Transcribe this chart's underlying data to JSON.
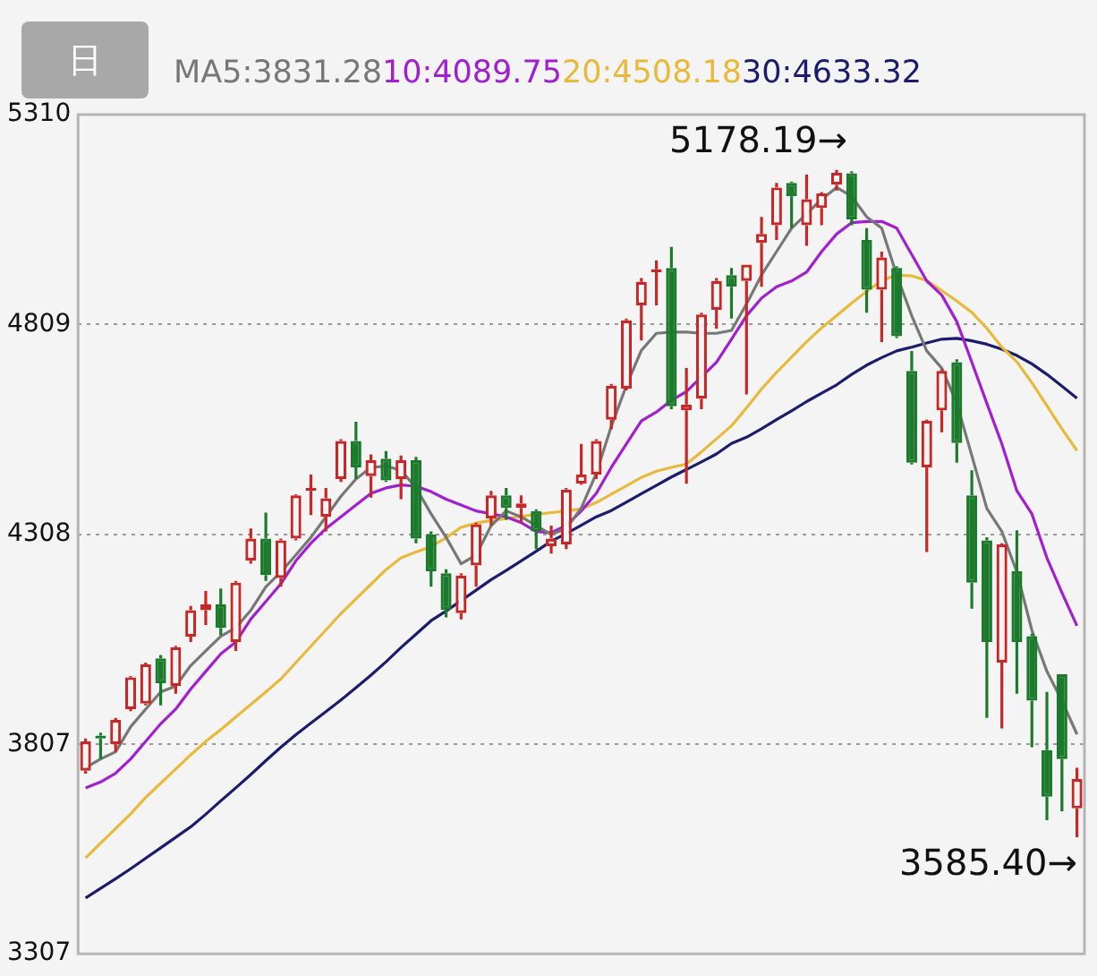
{
  "chart_data": {
    "type": "candlestick",
    "categories": [
      null,
      null,
      null,
      null,
      null,
      null,
      null,
      null,
      null,
      null,
      null,
      null,
      null,
      null,
      null,
      null,
      null,
      null,
      null,
      null,
      null,
      null,
      null,
      null,
      null,
      null,
      null,
      null,
      null,
      null,
      null,
      null,
      null,
      null,
      null,
      null,
      null,
      null,
      null,
      null,
      null,
      null,
      null,
      null,
      null,
      null,
      null,
      null,
      null,
      null,
      null,
      null,
      null,
      null,
      null,
      null,
      null,
      null,
      null,
      null,
      null,
      null,
      null,
      null,
      null,
      null,
      null
    ],
    "ohlc": [
      [
        3744,
        3821,
        3737,
        3814
      ],
      [
        3828,
        3835,
        3772,
        3821
      ],
      [
        3807,
        3870,
        3789,
        3865
      ],
      [
        3891,
        3970,
        3886,
        3967
      ],
      [
        3904,
        4002,
        3900,
        3998
      ],
      [
        4012,
        4020,
        3900,
        3953
      ],
      [
        3946,
        4042,
        3928,
        4039
      ],
      [
        4064,
        4137,
        4051,
        4127
      ],
      [
        4127,
        4173,
        4092,
        4141
      ],
      [
        4141,
        4179,
        4067,
        4085
      ],
      [
        4051,
        4197,
        4030,
        4193
      ],
      [
        4245,
        4322,
        4238,
        4298
      ],
      [
        4298,
        4360,
        4197,
        4211
      ],
      [
        4204,
        4298,
        4183,
        4294
      ],
      [
        4298,
        4404,
        4294,
        4401
      ],
      [
        4412,
        4451,
        4354,
        4419
      ],
      [
        4350,
        4419,
        4315,
        4394
      ],
      [
        4440,
        4535,
        4433,
        4531
      ],
      [
        4531,
        4577,
        4440,
        4468
      ],
      [
        4447,
        4499,
        4396,
        4485
      ],
      [
        4489,
        4507,
        4433,
        4437
      ],
      [
        4440,
        4496,
        4392,
        4485
      ],
      [
        4485,
        4493,
        4287,
        4298
      ],
      [
        4308,
        4315,
        4183,
        4220
      ],
      [
        4215,
        4225,
        4110,
        4128
      ],
      [
        4120,
        4215,
        4105,
        4210
      ],
      [
        4234,
        4336,
        4183,
        4332
      ],
      [
        4346,
        4412,
        4329,
        4401
      ],
      [
        4401,
        4419,
        4343,
        4371
      ],
      [
        4371,
        4401,
        4336,
        4382
      ],
      [
        4364,
        4368,
        4273,
        4315
      ],
      [
        4280,
        4329,
        4262,
        4298
      ],
      [
        4284,
        4419,
        4273,
        4415
      ],
      [
        4429,
        4524,
        4426,
        4451
      ],
      [
        4451,
        4535,
        4440,
        4531
      ],
      [
        4582,
        4667,
        4559,
        4663
      ],
      [
        4656,
        4823,
        4652,
        4819
      ],
      [
        4855,
        4920,
        4771,
        4911
      ],
      [
        4934,
        4962,
        4855,
        4941
      ],
      [
        4944,
        4994,
        4607,
        4614
      ],
      [
        4604,
        4705,
        4429,
        4618
      ],
      [
        4632,
        4837,
        4607,
        4833
      ],
      [
        4844,
        4920,
        4799,
        4913
      ],
      [
        4927,
        4944,
        4823,
        4899
      ],
      [
        4913,
        4952,
        4642,
        4952
      ],
      [
        5004,
        5066,
        4899,
        5025
      ],
      [
        5046,
        5147,
        5011,
        5136
      ],
      [
        5147,
        5150,
        5039,
        5115
      ],
      [
        5046,
        5167,
        4997,
        5108
      ],
      [
        5087,
        5125,
        5046,
        5122
      ],
      [
        5143,
        5178.19,
        5129,
        5171
      ],
      [
        5170,
        5175,
        5046,
        5060
      ],
      [
        5011,
        5039,
        4837,
        4892
      ],
      [
        4892,
        4983,
        4767,
        4969
      ],
      [
        4944,
        4948,
        4777,
        4781
      ],
      [
        4698,
        4746,
        4475,
        4479
      ],
      [
        4468,
        4582,
        4266,
        4579
      ],
      [
        4604,
        4702,
        4552,
        4698
      ],
      [
        4719,
        4726,
        4479,
        4526
      ],
      [
        4401,
        4461,
        4131,
        4193
      ],
      [
        4294,
        4301,
        3870,
        4051
      ],
      [
        4002,
        4287,
        3845,
        4284
      ],
      [
        4220,
        4318,
        3928,
        4051
      ],
      [
        4065,
        4071,
        3800,
        3911
      ],
      [
        3793,
        3932,
        3626,
        3682
      ],
      [
        3974,
        3974,
        3647,
        3772
      ],
      [
        3654,
        3751,
        3585.4,
        3724
      ]
    ],
    "colors": [
      "#c62828",
      "#1b7a2b",
      "#c62828",
      "#c62828",
      "#c62828",
      "#1b7a2b",
      "#c62828",
      "#c62828",
      "#c62828",
      "#1b7a2b",
      "#c62828",
      "#c62828",
      "#1b7a2b",
      "#c62828",
      "#c62828",
      "#c62828",
      "#c62828",
      "#c62828",
      "#1b7a2b",
      "#c62828",
      "#1b7a2b",
      "#c62828",
      "#1b7a2b",
      "#1b7a2b",
      "#1b7a2b",
      "#c62828",
      "#c62828",
      "#c62828",
      "#1b7a2b",
      "#c62828",
      "#1b7a2b",
      "#c62828",
      "#c62828",
      "#c62828",
      "#c62828",
      "#c62828",
      "#c62828",
      "#c62828",
      "#c62828",
      "#1b7a2b",
      "#c62828",
      "#c62828",
      "#c62828",
      "#1b7a2b",
      "#c62828",
      "#c62828",
      "#c62828",
      "#1b7a2b",
      "#c62828",
      "#c62828",
      "#c62828",
      "#1b7a2b",
      "#1b7a2b",
      "#c62828",
      "#1b7a2b",
      "#1b7a2b",
      "#c62828",
      "#c62828",
      "#1b7a2b",
      "#1b7a2b",
      "#1b7a2b",
      "#c62828",
      "#1b7a2b",
      "#1b7a2b",
      "#1b7a2b",
      "#1b7a2b",
      "#c62828"
    ],
    "series": [
      {
        "type": "line",
        "name": "MA5:3831.28",
        "color": "#777777",
        "values": [
          3751,
          3772,
          3789,
          3849,
          3891,
          3932,
          3946,
          3995,
          4030,
          4065,
          4085,
          4127,
          4183,
          4218,
          4259,
          4301,
          4350,
          4399,
          4440,
          4468,
          4471,
          4461,
          4419,
          4357,
          4301,
          4238,
          4259,
          4329,
          4364,
          4350,
          4329,
          4308,
          4322,
          4371,
          4454,
          4566,
          4663,
          4747,
          4788,
          4791,
          4791,
          4788,
          4788,
          4795,
          4858,
          4927,
          4983,
          5039,
          5073,
          5108,
          5136,
          5115,
          5066,
          5039,
          4927,
          4830,
          4746,
          4705,
          4621,
          4496,
          4370,
          4315,
          4218,
          4079,
          3981,
          3911,
          3831
        ]
      },
      {
        "type": "line",
        "name": "10:4089.75",
        "color": "#a21fd0",
        "values": [
          3703,
          3717,
          3738,
          3772,
          3814,
          3856,
          3891,
          3939,
          3981,
          4023,
          4051,
          4106,
          4148,
          4190,
          4245,
          4287,
          4322,
          4350,
          4378,
          4406,
          4419,
          4426,
          4423,
          4410,
          4392,
          4378,
          4364,
          4357,
          4350,
          4336,
          4315,
          4312,
          4329,
          4364,
          4406,
          4468,
          4524,
          4579,
          4600,
          4628,
          4649,
          4684,
          4719,
          4774,
          4830,
          4872,
          4899,
          4913,
          4934,
          4983,
          5025,
          5052,
          5055,
          5055,
          5039,
          4976,
          4913,
          4879,
          4816,
          4719,
          4621,
          4524,
          4412,
          4357,
          4252,
          4169,
          4090
        ]
      },
      {
        "type": "line",
        "name": "20:4508.18",
        "color": "#e8b93a",
        "values": [
          3536,
          3571,
          3606,
          3641,
          3680,
          3714,
          3748,
          3782,
          3814,
          3842,
          3872,
          3902,
          3932,
          3963,
          4002,
          4041,
          4080,
          4119,
          4154,
          4189,
          4224,
          4252,
          4266,
          4279,
          4300,
          4325,
          4335,
          4341,
          4346,
          4351,
          4356,
          4360,
          4364,
          4369,
          4384,
          4404,
          4424,
          4444,
          4459,
          4468,
          4476,
          4505,
          4536,
          4567,
          4610,
          4655,
          4695,
          4731,
          4768,
          4801,
          4830,
          4860,
          4888,
          4914,
          4927,
          4925,
          4914,
          4890,
          4865,
          4838,
          4800,
          4755,
          4720,
          4670,
          4615,
          4560,
          4508
        ]
      },
      {
        "type": "line",
        "name": "30:4633.32",
        "color": "#1c1c6e",
        "values": [
          3440,
          3463,
          3486,
          3510,
          3535,
          3560,
          3585,
          3610,
          3640,
          3672,
          3703,
          3735,
          3768,
          3800,
          3830,
          3858,
          3885,
          3913,
          3942,
          3972,
          4004,
          4038,
          4070,
          4102,
          4125,
          4150,
          4175,
          4200,
          4222,
          4245,
          4268,
          4292,
          4310,
          4330,
          4350,
          4365,
          4385,
          4405,
          4425,
          4445,
          4463,
          4481,
          4500,
          4525,
          4540,
          4560,
          4582,
          4603,
          4625,
          4645,
          4665,
          4690,
          4712,
          4730,
          4746,
          4755,
          4765,
          4774,
          4776,
          4770,
          4762,
          4750,
          4735,
          4715,
          4690,
          4662,
          4633
        ]
      }
    ],
    "ylim": [
      3307,
      5310
    ],
    "yticks": [
      3307,
      3807,
      4308,
      4809,
      5310
    ],
    "grid": "y",
    "tick_labels": "y",
    "legend": "top",
    "annotations": [
      "日",
      "5178.19→",
      "3585.40→"
    ]
  }
}
